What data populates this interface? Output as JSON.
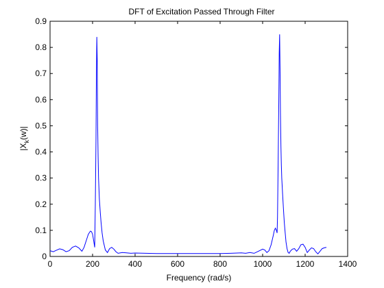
{
  "chart_data": {
    "type": "line",
    "title": "DFT of Excitation Passed Through Filter",
    "xlabel": "Frequency (rad/s)",
    "ylabel_main": "|X",
    "ylabel_sub": "k",
    "ylabel_rest": "(w)|",
    "xlim": [
      0,
      1400
    ],
    "ylim": [
      0,
      0.9
    ],
    "grid": false,
    "xticks": [
      0,
      200,
      400,
      600,
      800,
      1000,
      1200,
      1400
    ],
    "xtick_labels": [
      "0",
      "200",
      "400",
      "600",
      "800",
      "1000",
      "1200",
      "1400"
    ],
    "yticks": [
      0,
      0.1,
      0.2,
      0.3,
      0.4,
      0.5,
      0.6,
      0.7,
      0.8,
      0.9
    ],
    "ytick_labels": [
      "0",
      "0.1",
      "0.2",
      "0.3",
      "0.4",
      "0.5",
      "0.6",
      "0.7",
      "0.8",
      "0.9"
    ],
    "colors": {
      "series": "#0000ff",
      "axes": "#000000"
    },
    "series": [
      {
        "x": [
          0,
          15,
          30,
          45,
          60,
          75,
          90,
          105,
          120,
          135,
          150,
          160,
          170,
          180,
          190,
          195,
          200,
          205,
          210,
          213,
          216,
          218,
          220,
          222,
          224,
          226,
          228,
          232,
          236,
          240,
          245,
          250,
          260,
          270,
          280,
          290,
          300,
          310,
          320,
          340,
          360,
          380,
          400,
          450,
          500,
          550,
          600,
          650,
          700,
          750,
          800,
          850,
          880,
          900,
          920,
          940,
          960,
          980,
          1000,
          1010,
          1020,
          1030,
          1040,
          1050,
          1055,
          1060,
          1065,
          1068,
          1070,
          1073,
          1076,
          1078,
          1080,
          1082,
          1084,
          1086,
          1088,
          1090,
          1094,
          1098,
          1102,
          1106,
          1110,
          1115,
          1120,
          1125,
          1130,
          1140,
          1150,
          1160,
          1170,
          1180,
          1190,
          1200,
          1210,
          1220,
          1230,
          1240,
          1250,
          1260,
          1270,
          1280,
          1290,
          1300
        ],
        "y": [
          0.022,
          0.018,
          0.024,
          0.029,
          0.026,
          0.018,
          0.022,
          0.035,
          0.04,
          0.033,
          0.02,
          0.035,
          0.06,
          0.085,
          0.097,
          0.095,
          0.085,
          0.06,
          0.035,
          0.2,
          0.45,
          0.7,
          0.84,
          0.75,
          0.5,
          0.38,
          0.3,
          0.22,
          0.17,
          0.13,
          0.09,
          0.06,
          0.025,
          0.015,
          0.03,
          0.035,
          0.028,
          0.018,
          0.012,
          0.015,
          0.014,
          0.012,
          0.013,
          0.012,
          0.011,
          0.011,
          0.011,
          0.011,
          0.011,
          0.011,
          0.011,
          0.012,
          0.013,
          0.014,
          0.012,
          0.015,
          0.012,
          0.02,
          0.028,
          0.025,
          0.015,
          0.022,
          0.045,
          0.08,
          0.1,
          0.108,
          0.1,
          0.09,
          0.15,
          0.35,
          0.6,
          0.78,
          0.85,
          0.72,
          0.55,
          0.42,
          0.35,
          0.3,
          0.24,
          0.18,
          0.13,
          0.09,
          0.055,
          0.03,
          0.015,
          0.012,
          0.02,
          0.028,
          0.03,
          0.02,
          0.03,
          0.045,
          0.047,
          0.035,
          0.015,
          0.025,
          0.033,
          0.03,
          0.018,
          0.01,
          0.02,
          0.03,
          0.033,
          0.035
        ]
      }
    ]
  }
}
